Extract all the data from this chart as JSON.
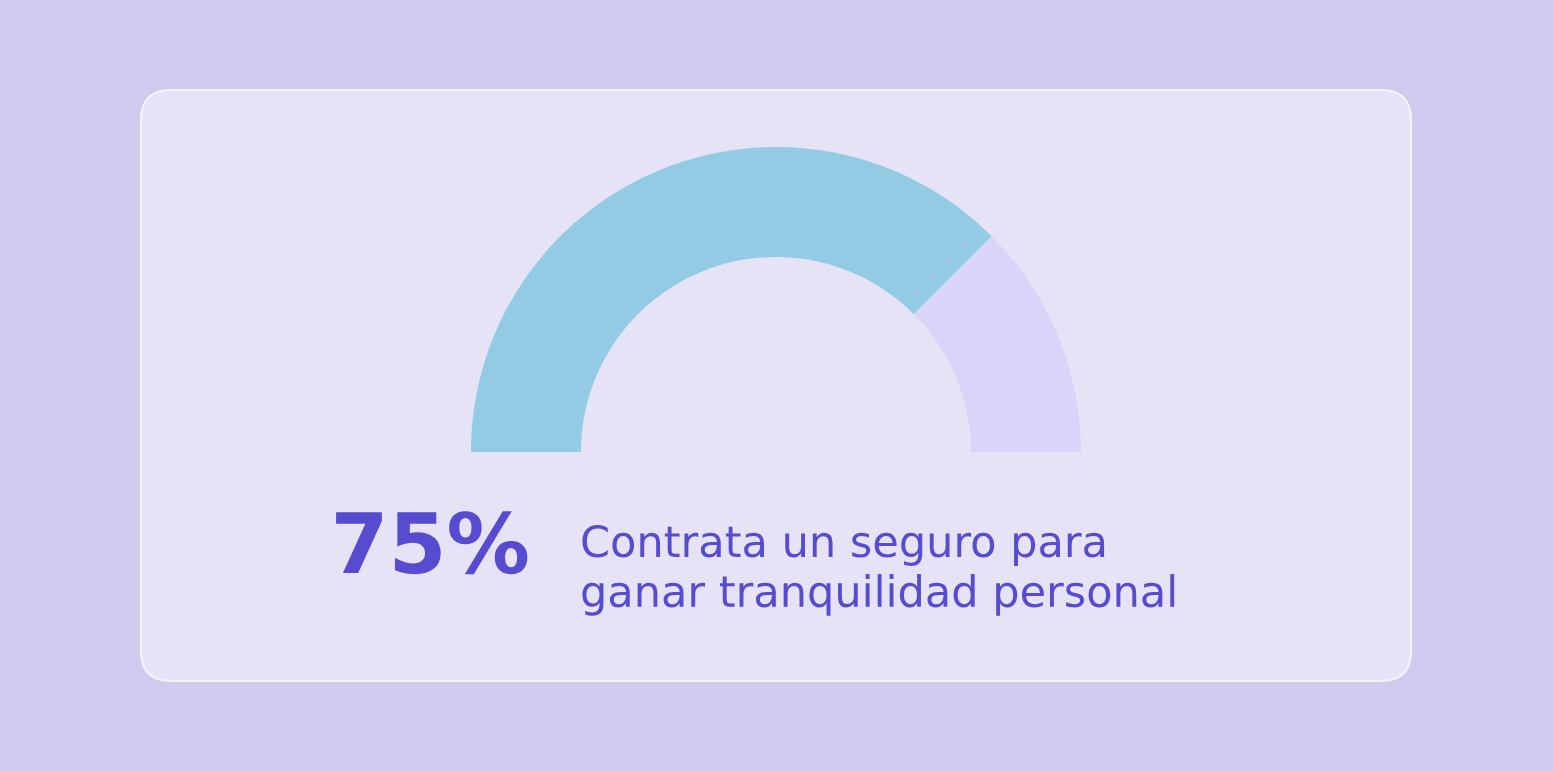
{
  "chart_data": {
    "type": "donut",
    "categories": [
      null,
      null
    ],
    "values": [
      75,
      25
    ],
    "colors": [
      "#93cbe5",
      "#dad4f8"
    ],
    "title": "75%",
    "subtitle": "Contrata un seguro para\nganar tranquilidad personal"
  }
}
